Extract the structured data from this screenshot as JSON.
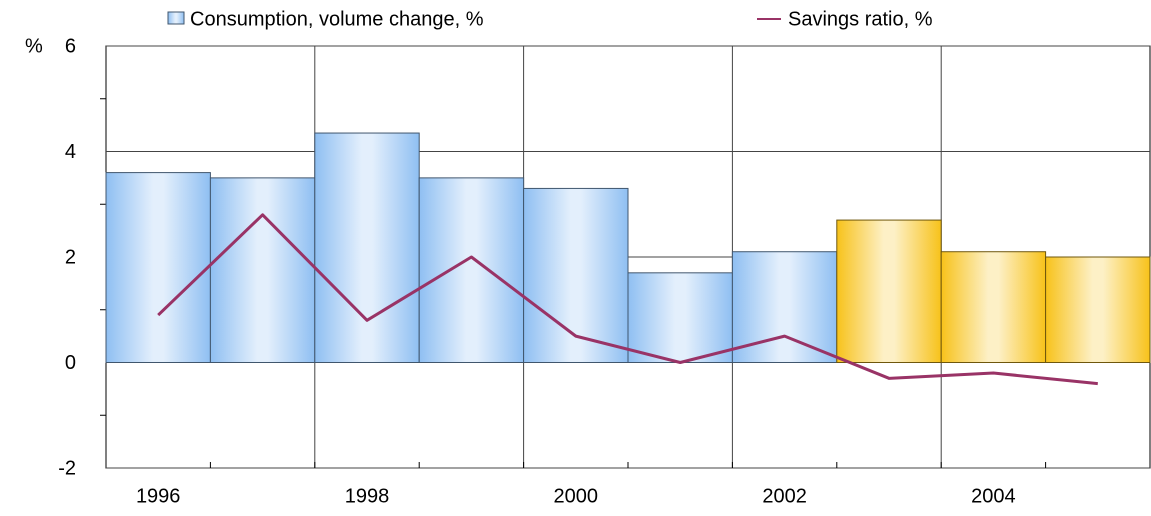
{
  "chart_data": {
    "type": "bar",
    "y_label": "%",
    "categories": [
      "1996",
      null,
      "1998",
      null,
      "2000",
      null,
      "2002",
      null,
      "2004",
      null
    ],
    "series": [
      {
        "name": "Consumption, volume change, %",
        "type": "bar",
        "colors": [
          "#8fbff2",
          "#8fbff2",
          "#8fbff2",
          "#8fbff2",
          "#8fbff2",
          "#8fbff2",
          "#8fbff2",
          "#f7c21a",
          "#f7c21a",
          "#f7c21a"
        ],
        "values": [
          3.6,
          3.5,
          4.35,
          3.5,
          3.3,
          1.7,
          2.1,
          2.7,
          2.1,
          2.0
        ]
      },
      {
        "name": "Savings ratio, %",
        "type": "line",
        "color": "#993366",
        "values": [
          0.9,
          2.8,
          0.8,
          2.0,
          0.5,
          0.0,
          0.5,
          -0.3,
          -0.2,
          -0.4
        ]
      }
    ],
    "ylim": [
      -2,
      6
    ],
    "yticks": [
      -2,
      0,
      2,
      4,
      6
    ],
    "grid": true
  }
}
